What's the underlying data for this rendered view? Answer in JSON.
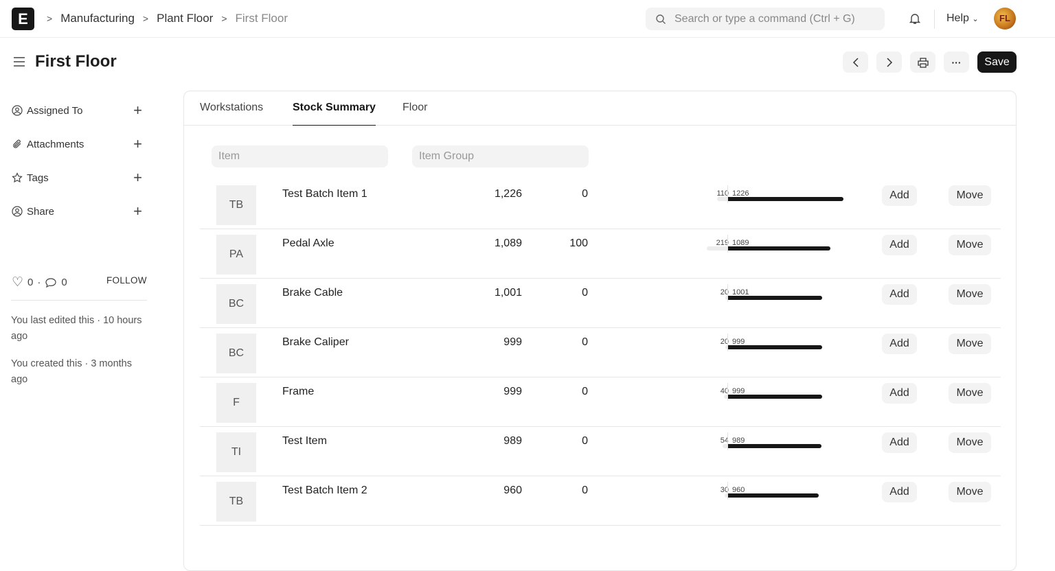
{
  "header": {
    "logo": "E",
    "breadcrumbs": [
      "Manufacturing",
      "Plant Floor",
      "First Floor"
    ],
    "search_placeholder": "Search or type a command (Ctrl + G)",
    "help": "Help",
    "user_initials": "FL"
  },
  "page": {
    "title": "First Floor",
    "save": "Save"
  },
  "sidebar": {
    "items": [
      {
        "label": "Assigned To",
        "icon": "user-circle-icon"
      },
      {
        "label": "Attachments",
        "icon": "paperclip-icon"
      },
      {
        "label": "Tags",
        "icon": "star-icon"
      },
      {
        "label": "Share",
        "icon": "user-share-icon"
      }
    ],
    "likes": "0",
    "comments": "0",
    "follow": "FOLLOW",
    "last_edited": "You last edited this · 10 hours ago",
    "created": "You created this · 3 months ago"
  },
  "tabs": [
    "Workstations",
    "Stock Summary",
    "Floor"
  ],
  "active_tab": "Stock Summary",
  "filters": {
    "item_placeholder": "Item",
    "item_group_placeholder": "Item Group"
  },
  "rows": [
    {
      "abbr": "TB",
      "name": "Test Batch Item 1",
      "qty": "1,226",
      "reserved": "0",
      "bar_left": 110,
      "bar_right": 1226
    },
    {
      "abbr": "PA",
      "name": "Pedal Axle",
      "qty": "1,089",
      "reserved": "100",
      "bar_left": 219,
      "bar_right": 1089
    },
    {
      "abbr": "BC",
      "name": "Brake Cable",
      "qty": "1,001",
      "reserved": "0",
      "bar_left": 20,
      "bar_right": 1001
    },
    {
      "abbr": "BC",
      "name": "Brake Caliper",
      "qty": "999",
      "reserved": "0",
      "bar_left": 20,
      "bar_right": 999
    },
    {
      "abbr": "F",
      "name": "Frame",
      "qty": "999",
      "reserved": "0",
      "bar_left": 40,
      "bar_right": 999
    },
    {
      "abbr": "TI",
      "name": "Test Item",
      "qty": "989",
      "reserved": "0",
      "bar_left": 54,
      "bar_right": 989
    },
    {
      "abbr": "TB",
      "name": "Test Batch Item 2",
      "qty": "960",
      "reserved": "0",
      "bar_left": 30,
      "bar_right": 960
    }
  ],
  "row_actions": {
    "add": "Add",
    "move": "Move"
  }
}
